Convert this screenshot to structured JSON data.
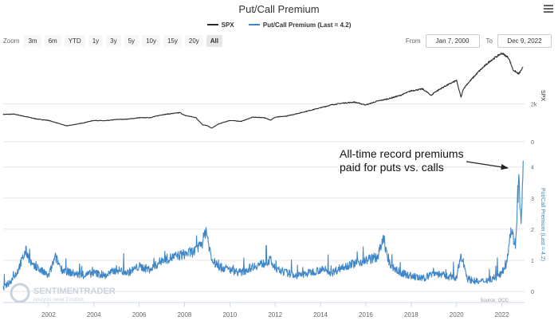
{
  "title": "Put/Call Premium",
  "legend": {
    "spx": "SPX",
    "pcp": "Put/Call Premium (Last = 4.2)"
  },
  "zoom": {
    "label": "Zoom",
    "buttons": [
      "3m",
      "6m",
      "YTD",
      "1y",
      "3y",
      "5y",
      "10y",
      "15y",
      "20y",
      "All"
    ],
    "active": "All"
  },
  "range": {
    "from_label": "From",
    "from_value": "Jan 7, 2000",
    "to_label": "To",
    "to_value": "Dec 9, 2022"
  },
  "colors": {
    "spx": "#2b2b2b",
    "pcp": "#3f86c8",
    "grid": "#e6e6e6"
  },
  "chart_data": [
    {
      "type": "line",
      "name": "SPX",
      "ylabel": "SPX",
      "y_ticks": [
        0,
        2000
      ],
      "y_tick_labels": [
        "0",
        "2k"
      ],
      "ylim": [
        0,
        4900
      ],
      "x": [
        2000.0,
        2000.5,
        2001.0,
        2001.5,
        2002.0,
        2002.5,
        2002.8,
        2003.0,
        2003.5,
        2004.0,
        2004.5,
        2005.0,
        2005.5,
        2006.0,
        2006.5,
        2007.0,
        2007.5,
        2007.8,
        2008.0,
        2008.5,
        2008.8,
        2009.0,
        2009.2,
        2009.5,
        2010.0,
        2010.5,
        2011.0,
        2011.5,
        2011.8,
        2012.0,
        2012.5,
        2013.0,
        2013.5,
        2014.0,
        2014.5,
        2015.0,
        2015.5,
        2016.0,
        2016.5,
        2017.0,
        2017.5,
        2018.0,
        2018.5,
        2018.9,
        2019.0,
        2019.5,
        2020.0,
        2020.2,
        2020.3,
        2020.5,
        2021.0,
        2021.5,
        2022.0,
        2022.3,
        2022.5,
        2022.75,
        2022.94
      ],
      "values": [
        1450,
        1460,
        1330,
        1200,
        1130,
        950,
        840,
        880,
        990,
        1130,
        1110,
        1180,
        1200,
        1270,
        1280,
        1430,
        1500,
        1540,
        1400,
        1280,
        900,
        850,
        720,
        940,
        1130,
        1080,
        1300,
        1280,
        1150,
        1300,
        1360,
        1500,
        1650,
        1800,
        1960,
        2050,
        2100,
        1950,
        2150,
        2280,
        2450,
        2700,
        2800,
        2450,
        2600,
        2950,
        3250,
        2350,
        2800,
        3100,
        3750,
        4300,
        4700,
        4450,
        3800,
        3600,
        3950
      ]
    },
    {
      "type": "line",
      "name": "Put/Call Premium (Last = 4.2)",
      "ylabel": "Put/Call Premium (Last = 4.2)",
      "y_ticks": [
        0,
        1,
        2,
        3,
        4
      ],
      "ylim": [
        0,
        4.3
      ],
      "x": [
        2000.0,
        2000.3,
        2000.6,
        2001.0,
        2001.3,
        2001.6,
        2002.0,
        2002.3,
        2002.6,
        2003.0,
        2003.5,
        2004.0,
        2004.5,
        2005.0,
        2005.5,
        2006.0,
        2006.5,
        2007.0,
        2007.5,
        2008.0,
        2008.5,
        2008.8,
        2008.95,
        2009.2,
        2009.5,
        2010.0,
        2010.5,
        2011.0,
        2011.5,
        2011.8,
        2012.0,
        2012.5,
        2013.0,
        2013.5,
        2014.0,
        2014.5,
        2015.0,
        2015.5,
        2016.0,
        2016.5,
        2016.8,
        2017.0,
        2017.5,
        2018.0,
        2018.5,
        2019.0,
        2019.5,
        2020.0,
        2020.2,
        2020.5,
        2021.0,
        2021.5,
        2021.9,
        2022.2,
        2022.4,
        2022.6,
        2022.75,
        2022.85,
        2022.94
      ],
      "values": [
        0.1,
        0.3,
        0.6,
        1.3,
        0.8,
        0.7,
        0.5,
        1.1,
        0.7,
        0.6,
        0.5,
        0.6,
        0.5,
        0.7,
        0.6,
        0.8,
        0.7,
        1.0,
        1.1,
        1.2,
        1.3,
        1.6,
        2.0,
        1.0,
        0.8,
        0.7,
        0.6,
        0.8,
        0.9,
        1.0,
        0.7,
        0.6,
        0.5,
        0.6,
        0.7,
        0.6,
        0.8,
        0.9,
        1.0,
        1.1,
        1.7,
        0.9,
        0.6,
        0.5,
        0.4,
        0.6,
        0.5,
        0.4,
        1.2,
        0.4,
        0.3,
        0.4,
        0.5,
        0.9,
        2.0,
        1.5,
        3.6,
        2.0,
        4.2
      ]
    }
  ],
  "x_axis": {
    "ticks": [
      2002,
      2004,
      2006,
      2008,
      2010,
      2012,
      2014,
      2016,
      2018,
      2020,
      2022
    ],
    "xlim": [
      2000,
      2023.0
    ]
  },
  "annotation": {
    "line1": "All-time record premiums",
    "line2": "paid for puts vs. calls"
  },
  "source": "Source: OCC",
  "watermark": {
    "brand": "SENTIMENTRADER",
    "tagline": "Analysis never Emotion"
  }
}
